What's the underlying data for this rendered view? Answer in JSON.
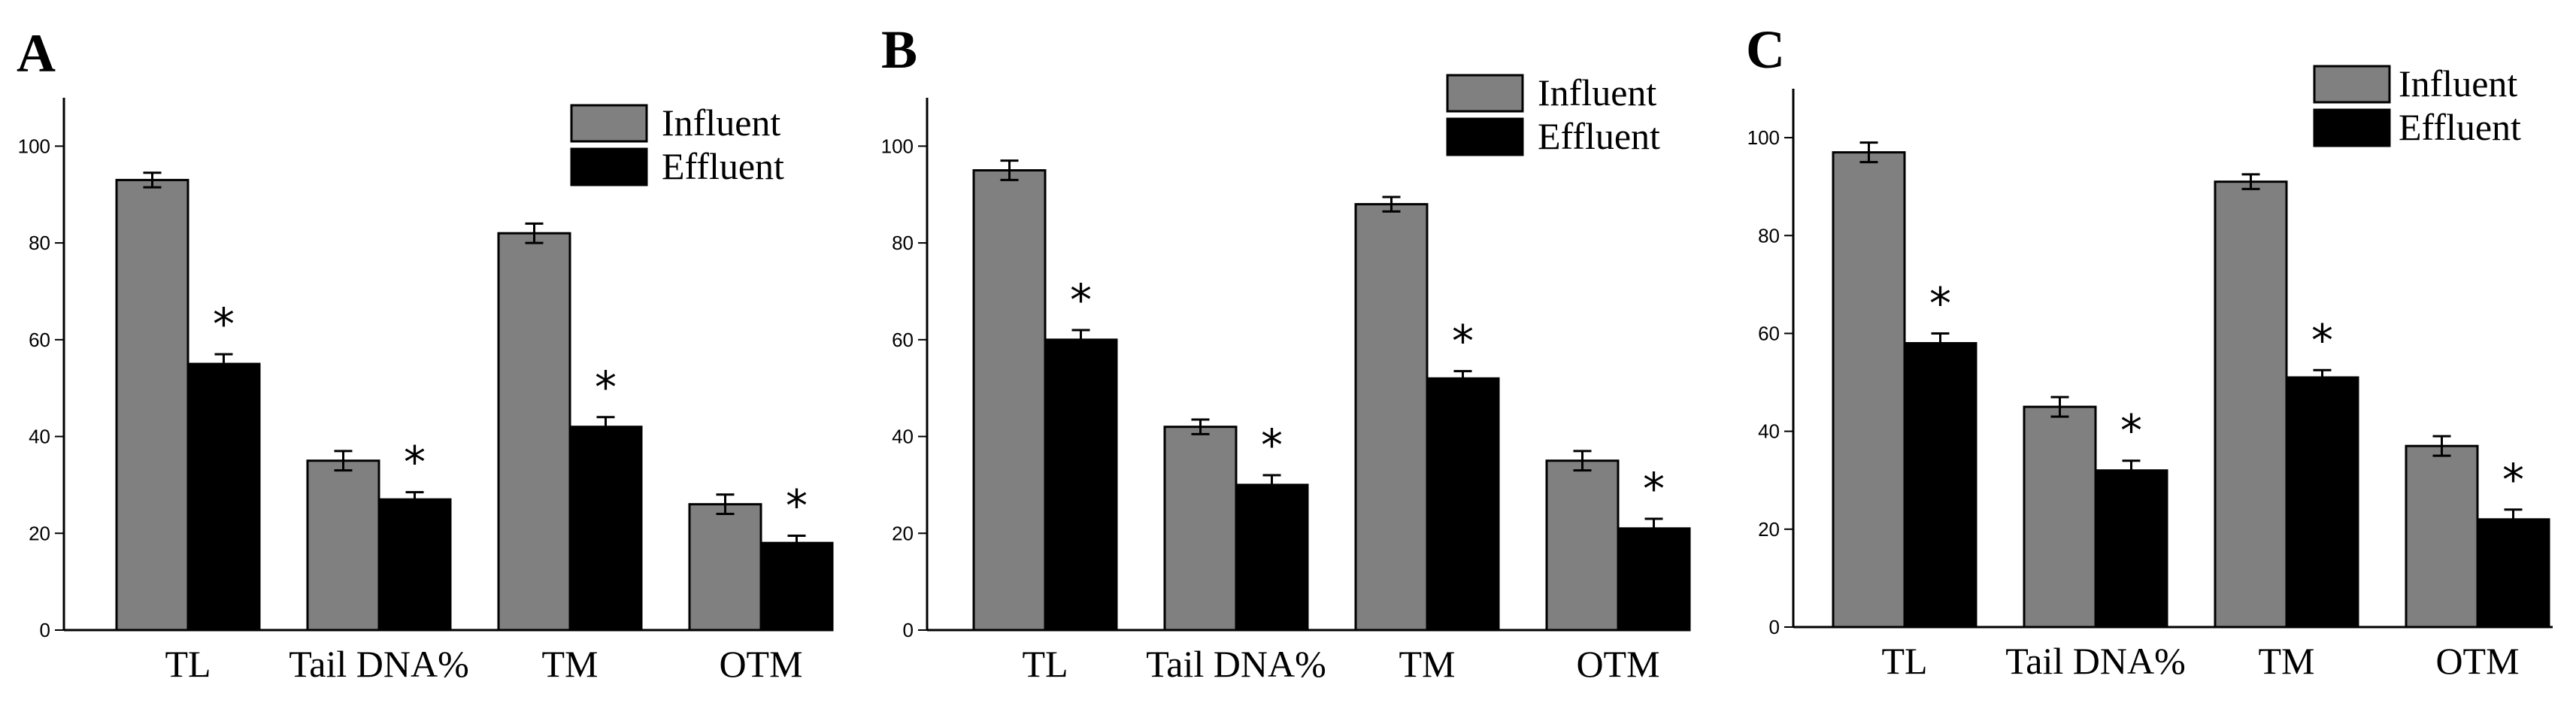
{
  "chart_data": [
    {
      "type": "bar",
      "panel_label": "A",
      "categories": [
        "TL",
        "Tail DNA%",
        "TM",
        "OTM"
      ],
      "series": [
        {
          "name": "Influent",
          "color": "#808080",
          "values": [
            93,
            35,
            82,
            26
          ],
          "errors": [
            1.5,
            2,
            2,
            2
          ]
        },
        {
          "name": "Effluent",
          "color": "#000000",
          "values": [
            55,
            27,
            42,
            18
          ],
          "errors": [
            2,
            1.5,
            2,
            1.5
          ]
        }
      ],
      "significance": [
        "*",
        "*",
        "*",
        "*"
      ],
      "yticks": [
        "0",
        "20",
        "40",
        "60",
        "80",
        "100"
      ],
      "ylim": [
        0,
        110
      ],
      "legend": "top-right"
    },
    {
      "type": "bar",
      "panel_label": "B",
      "categories": [
        "TL",
        "Tail DNA%",
        "TM",
        "OTM"
      ],
      "series": [
        {
          "name": "Influent",
          "color": "#808080",
          "values": [
            95,
            42,
            88,
            35
          ],
          "errors": [
            2,
            1.5,
            1.5,
            2
          ]
        },
        {
          "name": "Effluent",
          "color": "#000000",
          "values": [
            60,
            30,
            52,
            21
          ],
          "errors": [
            2,
            2,
            1.5,
            2
          ]
        }
      ],
      "significance": [
        "*",
        "*",
        "*",
        "*"
      ],
      "yticks": [
        "0",
        "20",
        "40",
        "60",
        "80",
        "100"
      ],
      "ylim": [
        0,
        110
      ],
      "legend": "top-right"
    },
    {
      "type": "bar",
      "panel_label": "C",
      "categories": [
        "TL",
        "Tail DNA%",
        "TM",
        "OTM"
      ],
      "series": [
        {
          "name": "Influent",
          "color": "#808080",
          "values": [
            97,
            45,
            91,
            37
          ],
          "errors": [
            2,
            2,
            1.5,
            2
          ]
        },
        {
          "name": "Effluent",
          "color": "#000000",
          "values": [
            58,
            32,
            51,
            22
          ],
          "errors": [
            2,
            2,
            1.5,
            2
          ]
        }
      ],
      "significance": [
        "*",
        "*",
        "*",
        "*"
      ],
      "yticks": [
        "0",
        "20",
        "40",
        "60",
        "80",
        "100"
      ],
      "ylim": [
        0,
        110
      ],
      "legend": "top-right"
    }
  ]
}
